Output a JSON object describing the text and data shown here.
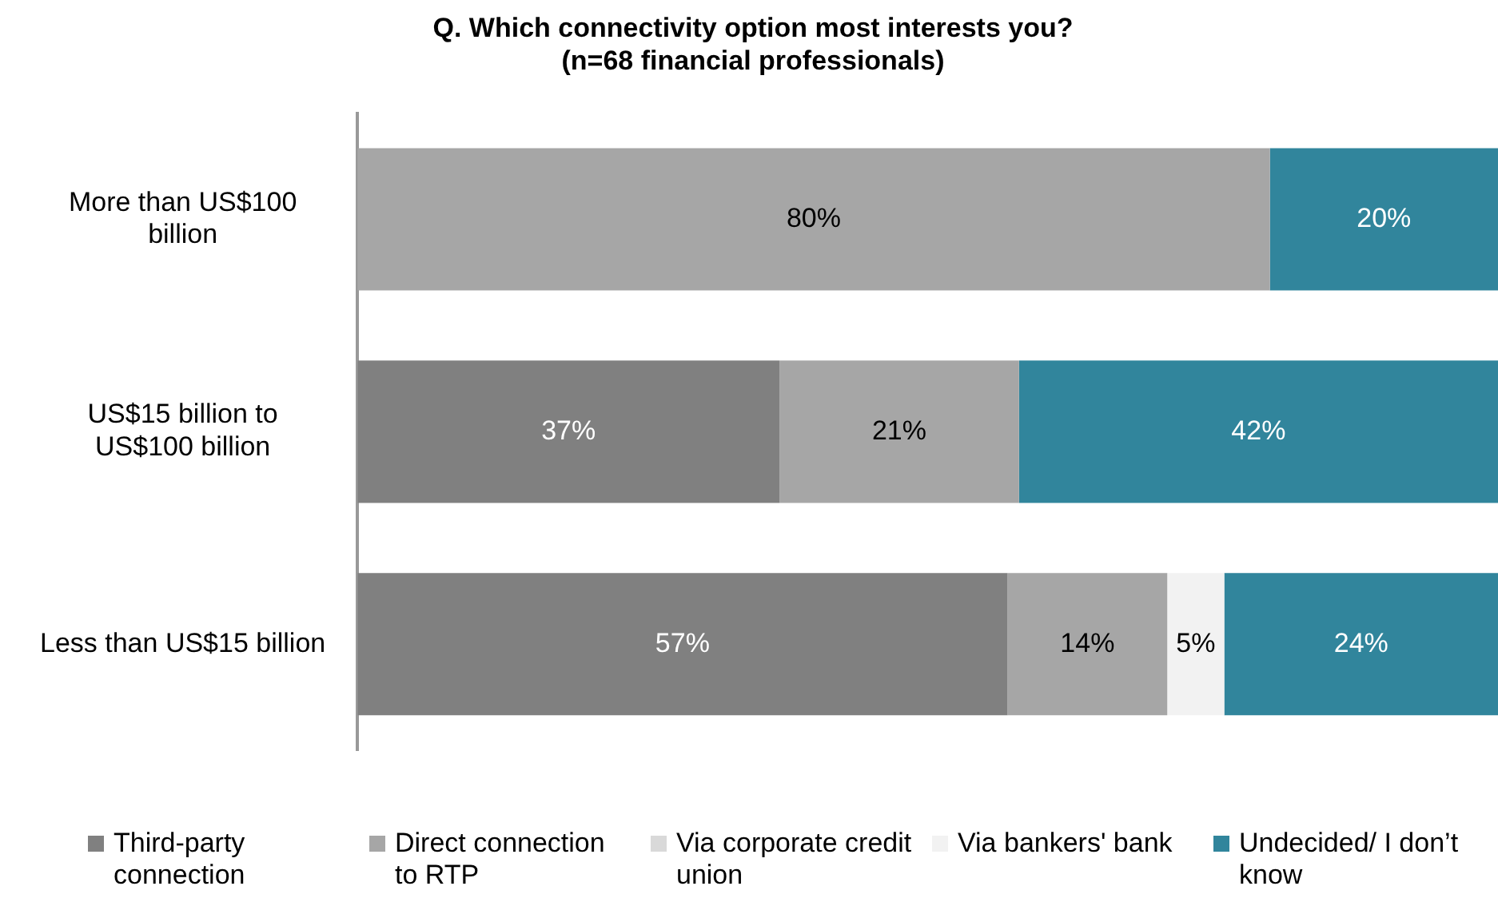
{
  "chart_data": {
    "type": "bar",
    "orientation": "horizontal",
    "stacked": true,
    "title": "Q. Which connectivity option most interests you?\n(n=68 financial professionals)",
    "categories": [
      "More than US$100 billion",
      "US$15 billion to US$100 billion",
      "Less than US$15 billion"
    ],
    "series": [
      {
        "name": "Third-party connection",
        "color": "#808080",
        "values": [
          0,
          37,
          57
        ],
        "value_labels": [
          null,
          "37%",
          "57%"
        ]
      },
      {
        "name": "Direct connection to RTP",
        "color": "#a6a6a6",
        "values": [
          80,
          21,
          14
        ],
        "value_labels": [
          "80%",
          "21%",
          "14%"
        ]
      },
      {
        "name": "Via corporate credit union",
        "color": "#d9d9d9",
        "values": [
          0,
          0,
          0
        ],
        "value_labels": [
          null,
          null,
          null
        ]
      },
      {
        "name": "Via bankers' bank",
        "color": "#f2f2f2",
        "values": [
          0,
          0,
          5
        ],
        "value_labels": [
          null,
          null,
          "5%"
        ]
      },
      {
        "name": "Undecided/ I don’t know",
        "color": "#31859c",
        "values": [
          20,
          42,
          24
        ],
        "value_labels": [
          "20%",
          "42%",
          "24%"
        ]
      }
    ],
    "xlim": [
      0,
      100
    ],
    "tick_labels": "y",
    "grid": false,
    "legend": "bottom"
  }
}
